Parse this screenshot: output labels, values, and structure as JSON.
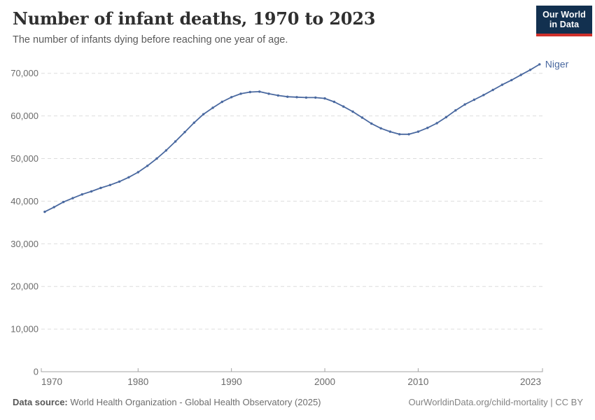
{
  "header": {
    "title": "Number of infant deaths, 1970 to 2023",
    "subtitle": "The number of infants dying before reaching one year of age.",
    "logo": {
      "line1": "Our World",
      "line2": "in Data"
    }
  },
  "chart_data": {
    "type": "line",
    "title": "Number of infant deaths, 1970 to 2023",
    "xlabel": "",
    "ylabel": "",
    "xlim": [
      1970,
      2023
    ],
    "ylim": [
      0,
      72500
    ],
    "grid": "horizontal-dashed",
    "legend_position": "end-of-line-label",
    "xticks": [
      1970,
      1980,
      1990,
      2000,
      2010,
      2023
    ],
    "yticks": [
      0,
      10000,
      20000,
      30000,
      40000,
      50000,
      60000,
      70000
    ],
    "series": [
      {
        "name": "Niger",
        "color": "#4a69a0",
        "x": [
          1970,
          1971,
          1972,
          1973,
          1974,
          1975,
          1976,
          1977,
          1978,
          1979,
          1980,
          1981,
          1982,
          1983,
          1984,
          1985,
          1986,
          1987,
          1988,
          1989,
          1990,
          1991,
          1992,
          1993,
          1994,
          1995,
          1996,
          1997,
          1998,
          1999,
          2000,
          2001,
          2002,
          2003,
          2004,
          2005,
          2006,
          2007,
          2008,
          2009,
          2010,
          2011,
          2012,
          2013,
          2014,
          2015,
          2016,
          2017,
          2018,
          2019,
          2020,
          2021,
          2022,
          2023
        ],
        "values": [
          37500,
          38600,
          39800,
          40700,
          41600,
          42300,
          43100,
          43800,
          44600,
          45600,
          46800,
          48300,
          50000,
          51900,
          54000,
          56200,
          58400,
          60400,
          61900,
          63300,
          64400,
          65200,
          65600,
          65700,
          65200,
          64800,
          64500,
          64400,
          64300,
          64300,
          64100,
          63300,
          62200,
          61000,
          59600,
          58200,
          57100,
          56300,
          55700,
          55700,
          56300,
          57200,
          58300,
          59700,
          61300,
          62700,
          63800,
          64900,
          66100,
          67300,
          68400,
          69600,
          70800,
          72100
        ]
      }
    ]
  },
  "footer": {
    "source_label": "Data source:",
    "source_text": " World Health Organization - Global Health Observatory (2025)",
    "link_text": "OurWorldinData.org/child-mortality | CC BY"
  },
  "colors": {
    "line": "#4a69a0",
    "grid": "#dddddd",
    "axis": "#a3a3a3",
    "tick_label": "#6b6b6b",
    "logo_bg": "#12304f",
    "logo_accent": "#cf302b"
  }
}
